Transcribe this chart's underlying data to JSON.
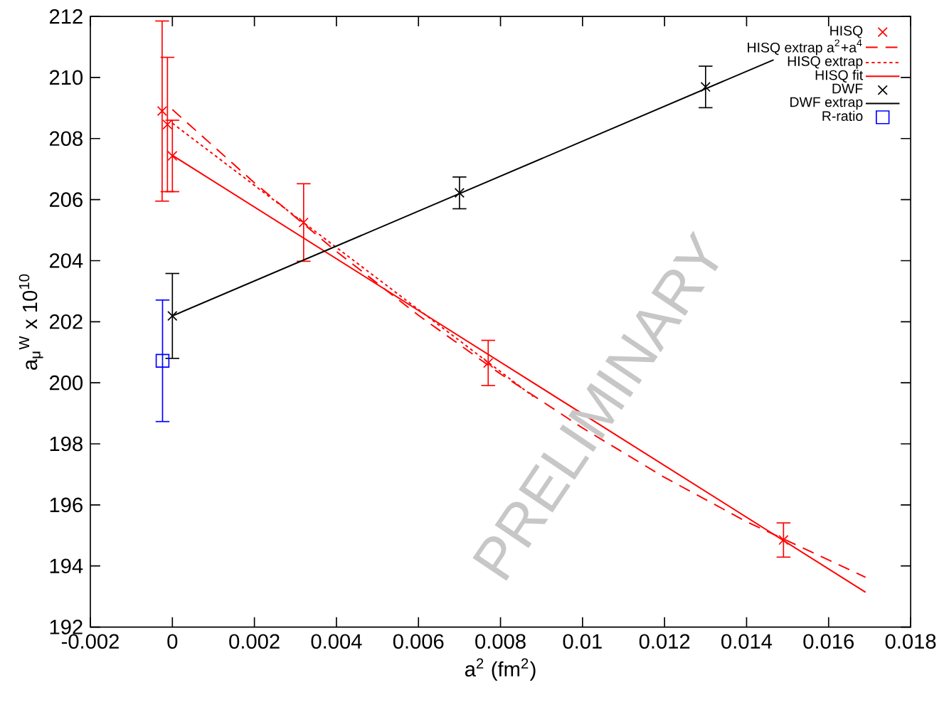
{
  "chart_data": {
    "type": "scatter",
    "xlabel": "a$^{2}$ (fm$^{2}$)",
    "ylabel": "a$_{μ}$$^{W}$ x 10$^{10}$",
    "xlim": [
      -0.002,
      0.018
    ],
    "ylim": [
      192,
      212
    ],
    "xticks": [
      -0.002,
      0,
      0.002,
      0.004,
      0.006,
      0.008,
      0.01,
      0.012,
      0.014,
      0.016,
      0.018
    ],
    "yticks": [
      192,
      194,
      196,
      198,
      200,
      202,
      204,
      206,
      208,
      210,
      212
    ],
    "legend": "top right",
    "grid": false,
    "annotations": [
      "PRELIMINARY"
    ],
    "series": [
      {
        "name": "HISQ",
        "color": "#ff0000",
        "marker": "cross",
        "x": [
          -0.00025,
          -0.00012,
          0,
          0.0032,
          0.0077,
          0.0149
        ],
        "values": [
          208.9,
          208.46,
          207.43,
          205.25,
          200.65,
          194.85
        ],
        "errors": [
          2.95,
          2.2,
          1.17,
          1.27,
          0.74,
          0.56
        ]
      },
      {
        "name": "HISQ extrap a$^{2}$+a$^{4}$",
        "type": "line",
        "color": "#ff0000",
        "line_style": "dashed",
        "x": [
          0,
          0.002,
          0.004,
          0.006,
          0.008,
          0.01,
          0.012,
          0.014,
          0.0169
        ],
        "values": [
          208.95,
          206.55,
          204.3,
          202.21,
          200.29,
          198.52,
          196.9,
          195.45,
          193.63
        ]
      },
      {
        "name": "HISQ extrap",
        "type": "line",
        "color": "#ff0000",
        "line_style": "dotted",
        "x": [
          0,
          0.0088
        ],
        "values": [
          208.5,
          199.55
        ]
      },
      {
        "name": "HISQ fit",
        "type": "line",
        "color": "#ff0000",
        "line_style": "solid",
        "x": [
          0,
          0.0169
        ],
        "values": [
          207.45,
          193.14
        ]
      },
      {
        "name": "DWF",
        "color": "#000000",
        "marker": "cross",
        "x": [
          0,
          0.007,
          0.013
        ],
        "values": [
          202.19,
          206.22,
          209.69
        ],
        "errors": [
          1.39,
          0.52,
          0.68
        ]
      },
      {
        "name": "DWF extrap",
        "type": "line",
        "color": "#000000",
        "line_style": "solid",
        "x": [
          0,
          0.01466
        ],
        "values": [
          202.19,
          210.58
        ]
      },
      {
        "name": "R-ratio",
        "color": "#0000ff",
        "marker": "square",
        "x": [
          -0.00024
        ],
        "values": [
          200.72
        ],
        "errors": [
          1.99
        ]
      }
    ]
  }
}
